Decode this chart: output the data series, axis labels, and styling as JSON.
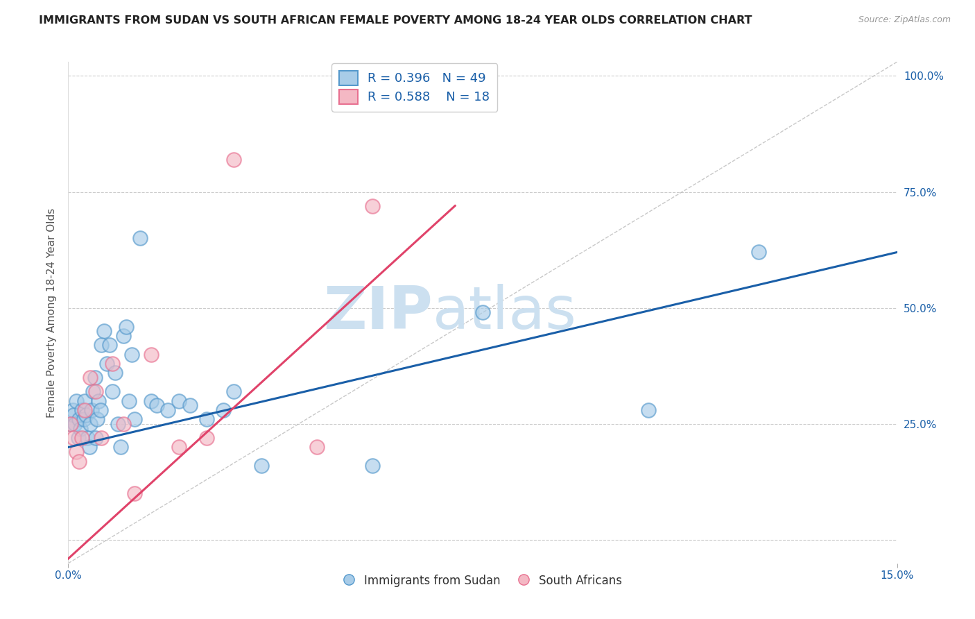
{
  "title": "IMMIGRANTS FROM SUDAN VS SOUTH AFRICAN FEMALE POVERTY AMONG 18-24 YEAR OLDS CORRELATION CHART",
  "source": "Source: ZipAtlas.com",
  "ylabel": "Female Poverty Among 18-24 Year Olds",
  "xlim": [
    0.0,
    15.0
  ],
  "ylim": [
    -5.0,
    103.0
  ],
  "y_ticks": [
    0.0,
    25.0,
    50.0,
    75.0,
    100.0
  ],
  "y_tick_labels": [
    "",
    "25.0%",
    "50.0%",
    "75.0%",
    "100.0%"
  ],
  "x_ticks": [
    0.0,
    15.0
  ],
  "x_tick_labels": [
    "0.0%",
    "15.0%"
  ],
  "r_blue": 0.396,
  "n_blue": 49,
  "r_pink": 0.588,
  "n_pink": 18,
  "color_blue_fill": "#a8cce8",
  "color_pink_fill": "#f4b8c4",
  "color_blue_edge": "#5599cc",
  "color_pink_edge": "#e87090",
  "color_blue_line": "#1a5fa8",
  "color_pink_line": "#e0436a",
  "color_diagonal": "#bbbbbb",
  "watermark": "ZIPatlas",
  "watermark_color": "#cce0f0",
  "blue_trend_x0": 0.0,
  "blue_trend_y0": 20.0,
  "blue_trend_x1": 15.0,
  "blue_trend_y1": 62.0,
  "pink_trend_x0": 0.0,
  "pink_trend_y0": -4.0,
  "pink_trend_x1": 7.0,
  "pink_trend_y1": 72.0,
  "blue_scatter_x": [
    0.05,
    0.08,
    0.1,
    0.12,
    0.15,
    0.18,
    0.2,
    0.22,
    0.25,
    0.28,
    0.3,
    0.32,
    0.35,
    0.38,
    0.4,
    0.42,
    0.45,
    0.48,
    0.5,
    0.52,
    0.55,
    0.58,
    0.6,
    0.65,
    0.7,
    0.75,
    0.8,
    0.85,
    0.9,
    0.95,
    1.0,
    1.05,
    1.1,
    1.15,
    1.2,
    1.3,
    1.5,
    1.6,
    1.8,
    2.0,
    2.2,
    2.5,
    2.8,
    3.0,
    3.5,
    5.5,
    7.5,
    10.5,
    12.5
  ],
  "blue_scatter_y": [
    25.0,
    28.0,
    27.0,
    25.0,
    30.0,
    22.0,
    26.0,
    24.0,
    28.0,
    26.0,
    30.0,
    27.0,
    22.0,
    20.0,
    25.0,
    28.0,
    32.0,
    35.0,
    22.0,
    26.0,
    30.0,
    28.0,
    42.0,
    45.0,
    38.0,
    42.0,
    32.0,
    36.0,
    25.0,
    20.0,
    44.0,
    46.0,
    30.0,
    40.0,
    26.0,
    65.0,
    30.0,
    29.0,
    28.0,
    30.0,
    29.0,
    26.0,
    28.0,
    32.0,
    16.0,
    16.0,
    49.0,
    28.0,
    62.0
  ],
  "pink_scatter_x": [
    0.05,
    0.1,
    0.15,
    0.2,
    0.25,
    0.3,
    0.4,
    0.5,
    0.6,
    0.8,
    1.0,
    1.2,
    1.5,
    2.0,
    2.5,
    3.0,
    4.5,
    5.5
  ],
  "pink_scatter_y": [
    25.0,
    22.0,
    19.0,
    17.0,
    22.0,
    28.0,
    35.0,
    32.0,
    22.0,
    38.0,
    25.0,
    10.0,
    40.0,
    20.0,
    22.0,
    82.0,
    20.0,
    72.0
  ],
  "legend_label_blue": "Immigrants from Sudan",
  "legend_label_pink": "South Africans",
  "background_color": "#ffffff",
  "grid_color": "#cccccc",
  "title_fontsize": 11.5,
  "axis_label_fontsize": 11,
  "tick_fontsize": 11,
  "legend_fontsize": 13
}
